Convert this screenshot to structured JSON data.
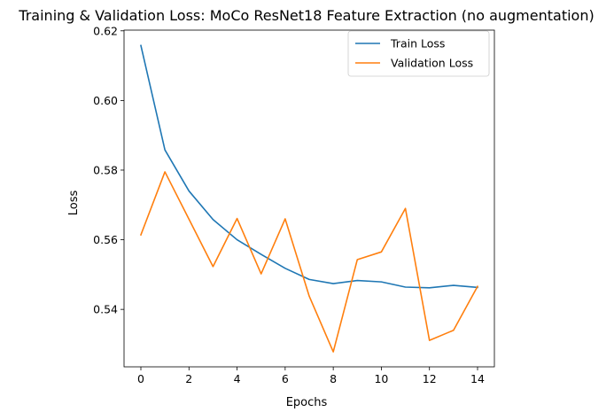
{
  "chart_data": {
    "type": "line",
    "title": "Training & Validation Loss: MoCo ResNet18 Feature Extraction (no augmentation)",
    "xlabel": "Epochs",
    "ylabel": "Loss",
    "x": [
      0,
      1,
      2,
      3,
      4,
      5,
      6,
      7,
      8,
      9,
      10,
      11,
      12,
      13,
      14
    ],
    "xlim": [
      -0.7,
      14.7
    ],
    "ylim": [
      0.5235,
      0.6202
    ],
    "xticks": [
      0,
      2,
      4,
      6,
      8,
      10,
      12,
      14
    ],
    "xtick_labels": [
      "0",
      "2",
      "4",
      "6",
      "8",
      "10",
      "12",
      "14"
    ],
    "yticks": [
      0.54,
      0.56,
      0.58,
      0.6,
      0.62
    ],
    "ytick_labels": [
      "0.54",
      "0.56",
      "0.58",
      "0.60",
      "0.62"
    ],
    "grid": false,
    "legend": "top-right",
    "series": [
      {
        "name": "Train Loss",
        "color": "#1f77b4",
        "values": [
          0.6158,
          0.5858,
          0.574,
          0.5658,
          0.56,
          0.5558,
          0.5518,
          0.5486,
          0.5474,
          0.5483,
          0.5479,
          0.5464,
          0.5462,
          0.5469,
          0.5463
        ]
      },
      {
        "name": "Validation Loss",
        "color": "#ff7f0e",
        "values": [
          0.5614,
          0.5795,
          0.5659,
          0.5523,
          0.5661,
          0.5502,
          0.566,
          0.5438,
          0.5278,
          0.5543,
          0.5565,
          0.569,
          0.5311,
          0.534,
          0.5466
        ]
      }
    ]
  }
}
